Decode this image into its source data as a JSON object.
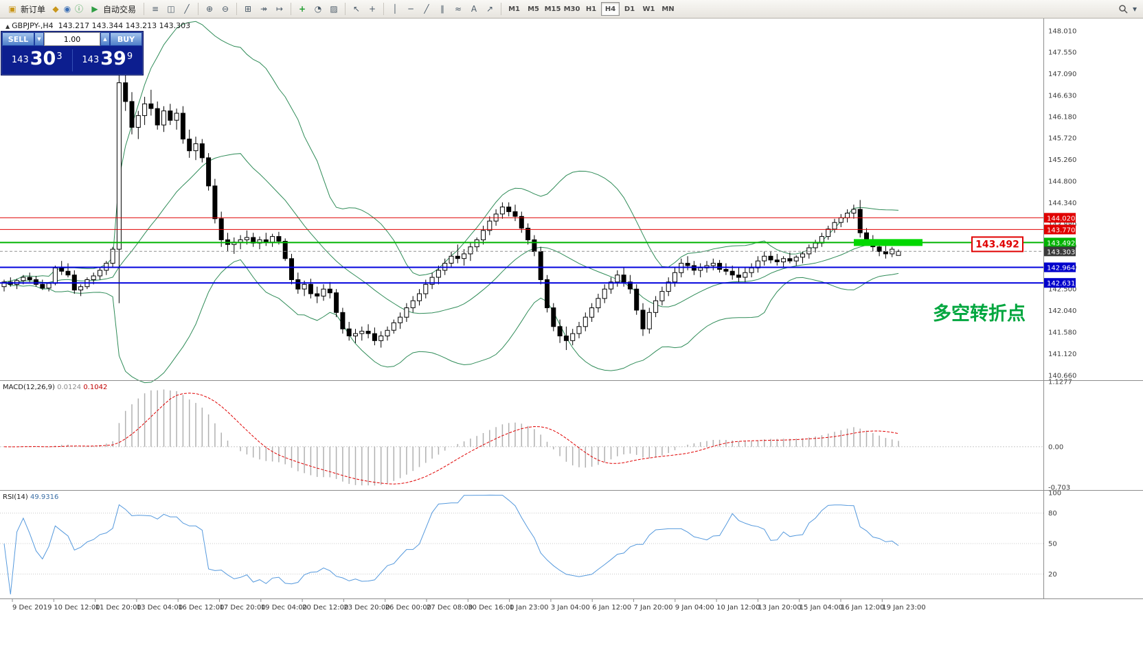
{
  "toolbar": {
    "new_order_label": "新订单",
    "auto_trading_label": "自动交易",
    "glyphs": {
      "new_order": "▣",
      "profile": "◆",
      "market": "◉",
      "info": "ⓘ",
      "play": "▶",
      "dropdown": "▾"
    },
    "tools": [
      {
        "name": "bar-chart",
        "glyph": "≡"
      },
      {
        "name": "candlestick-chart",
        "glyph": "◫"
      },
      {
        "name": "line-chart",
        "glyph": "╱"
      },
      {
        "name": "sep"
      },
      {
        "name": "zoom-in",
        "glyph": "⊕"
      },
      {
        "name": "zoom-out",
        "glyph": "⊖"
      },
      {
        "name": "sep"
      },
      {
        "name": "tile-windows",
        "glyph": "⊞"
      },
      {
        "name": "auto-scroll",
        "glyph": "↠"
      },
      {
        "name": "chart-shift",
        "glyph": "↦"
      },
      {
        "name": "sep"
      },
      {
        "name": "indicators-add",
        "glyph": "+",
        "color": "#1f9d2f"
      },
      {
        "name": "periods",
        "glyph": "◔"
      },
      {
        "name": "templates",
        "glyph": "▨"
      },
      {
        "name": "sep"
      },
      {
        "name": "cursor",
        "glyph": "↖"
      },
      {
        "name": "crosshair",
        "glyph": "+"
      },
      {
        "name": "sep"
      },
      {
        "name": "vertical-line",
        "glyph": "│"
      },
      {
        "name": "horizontal-line",
        "glyph": "─"
      },
      {
        "name": "trendline",
        "glyph": "╱"
      },
      {
        "name": "equidistant-channel",
        "glyph": "∥"
      },
      {
        "name": "fibonacci",
        "glyph": "≈"
      },
      {
        "name": "text-tool",
        "glyph": "A"
      },
      {
        "name": "arrows-tool",
        "glyph": "↗"
      }
    ],
    "timeframes": [
      "M1",
      "M5",
      "M15",
      "M30",
      "H1",
      "H4",
      "D1",
      "W1",
      "MN"
    ],
    "active_timeframe": "H4"
  },
  "symbol_header": {
    "arrow": "▲",
    "symbol": "GBPJPY-,H4",
    "ohlc_text": "143.217 143.344 143.213 143.303"
  },
  "trade_panel": {
    "sell_label": "SELL",
    "buy_label": "BUY",
    "lot_value": "1.00",
    "down_glyph": "▼",
    "up_glyph": "▲",
    "sell_price_main": "143",
    "sell_price_big": "30",
    "sell_price_sup": "3",
    "buy_price_main": "143",
    "buy_price_big": "39",
    "buy_price_sup": "9"
  },
  "chart_data": {
    "type": "candlestick",
    "symbol": "GBPJPY-",
    "timeframe": "H4",
    "ylim": [
      140.57,
      148.27
    ],
    "y_ticks": [
      148.01,
      147.55,
      147.09,
      146.63,
      146.18,
      145.72,
      145.26,
      144.8,
      144.34,
      143.88,
      143.42,
      142.96,
      142.5,
      142.04,
      141.58,
      141.12,
      140.66
    ],
    "levels": [
      {
        "value": 144.02,
        "color": "#e00000",
        "style": "solid",
        "width": 1
      },
      {
        "value": 143.77,
        "color": "#e00000",
        "style": "solid",
        "width": 1
      },
      {
        "value": 143.492,
        "color": "#00b400",
        "style": "solid",
        "width": 2
      },
      {
        "value": 143.303,
        "color": "#909090",
        "style": "dash",
        "width": 1
      },
      {
        "value": 142.964,
        "color": "#0000dd",
        "style": "solid",
        "width": 2
      },
      {
        "value": 142.631,
        "color": "#0000dd",
        "style": "solid",
        "width": 2
      }
    ],
    "price_tags": [
      {
        "value": 144.02,
        "bg": "#e00000"
      },
      {
        "value": 143.77,
        "bg": "#e00000"
      },
      {
        "value": 143.492,
        "bg": "#00b400"
      },
      {
        "value": 143.303,
        "bg": "#3a3a3a"
      },
      {
        "value": 142.964,
        "bg": "#0000cc"
      },
      {
        "value": 142.631,
        "bg": "#0000cc"
      }
    ],
    "bollinger": {
      "period": 20,
      "deviation": 2,
      "color": "#2e8b57"
    },
    "macd": {
      "fast": 12,
      "slow": 26,
      "signal": 9,
      "label": "MACD(12,26,9)",
      "main_value": "0.0124",
      "signal_value": "0.1042",
      "ylim": [
        -0.703,
        1.1277
      ],
      "axis_labels": [
        1.1277,
        0.0,
        -0.703
      ]
    },
    "rsi": {
      "period": 14,
      "label": "RSI(14)",
      "value": "49.9316",
      "ylim": [
        0,
        100
      ],
      "level_lines": [
        80,
        50,
        20
      ],
      "axis_labels": [
        100,
        80,
        50,
        20
      ]
    },
    "annotations": {
      "green_box": {
        "price": 143.492
      },
      "price_label": "143.492",
      "cn_text": "多空转折点"
    },
    "time_labels": [
      "9 Dec 2019",
      "10 Dec 12:00",
      "11 Dec 20:00",
      "13 Dec 04:00",
      "16 Dec 12:00",
      "17 Dec 20:00",
      "19 Dec 04:00",
      "20 Dec 12:00",
      "23 Dec 20:00",
      "26 Dec 00:00",
      "27 Dec 08:00",
      "30 Dec 16:00",
      "1 Jan 23:00",
      "3 Jan 04:00",
      "6 Jan 12:00",
      "7 Jan 20:00",
      "9 Jan 04:00",
      "10 Jan 12:00",
      "13 Jan 20:00",
      "15 Jan 04:00",
      "16 Jan 12:00",
      "19 Jan 23:00"
    ],
    "ohlc": [
      [
        142.55,
        142.7,
        142.45,
        142.65
      ],
      [
        142.65,
        142.75,
        142.55,
        142.6
      ],
      [
        142.6,
        142.72,
        142.5,
        142.68
      ],
      [
        142.68,
        142.8,
        142.6,
        142.75
      ],
      [
        142.75,
        142.85,
        142.65,
        142.7
      ],
      [
        142.7,
        142.78,
        142.55,
        142.6
      ],
      [
        142.6,
        142.7,
        142.48,
        142.52
      ],
      [
        142.52,
        142.65,
        142.45,
        142.62
      ],
      [
        142.62,
        143.0,
        142.58,
        142.95
      ],
      [
        142.95,
        143.1,
        142.8,
        142.88
      ],
      [
        142.88,
        143.05,
        142.75,
        142.8
      ],
      [
        142.8,
        142.9,
        142.4,
        142.48
      ],
      [
        142.48,
        142.6,
        142.35,
        142.55
      ],
      [
        142.55,
        142.75,
        142.5,
        142.7
      ],
      [
        142.7,
        142.85,
        142.6,
        142.78
      ],
      [
        142.78,
        142.95,
        142.7,
        142.9
      ],
      [
        142.9,
        143.1,
        142.8,
        143.05
      ],
      [
        143.05,
        143.4,
        142.95,
        143.35
      ],
      [
        143.35,
        147.9,
        142.2,
        146.9
      ],
      [
        146.9,
        147.25,
        146.3,
        146.5
      ],
      [
        146.5,
        146.7,
        145.8,
        145.95
      ],
      [
        145.95,
        146.3,
        145.7,
        146.2
      ],
      [
        146.2,
        146.6,
        146.0,
        146.45
      ],
      [
        146.45,
        146.75,
        146.2,
        146.35
      ],
      [
        146.35,
        146.5,
        145.9,
        146.0
      ],
      [
        146.0,
        146.4,
        145.85,
        146.3
      ],
      [
        146.3,
        146.45,
        146.0,
        146.1
      ],
      [
        146.1,
        146.35,
        145.9,
        146.25
      ],
      [
        146.25,
        146.4,
        145.6,
        145.7
      ],
      [
        145.7,
        145.9,
        145.3,
        145.45
      ],
      [
        145.45,
        145.75,
        145.25,
        145.6
      ],
      [
        145.6,
        145.7,
        145.2,
        145.3
      ],
      [
        145.3,
        145.4,
        144.6,
        144.7
      ],
      [
        144.7,
        144.85,
        143.9,
        144.0
      ],
      [
        144.0,
        144.15,
        143.4,
        143.55
      ],
      [
        143.55,
        143.7,
        143.3,
        143.45
      ],
      [
        143.45,
        143.6,
        143.25,
        143.5
      ],
      [
        143.5,
        143.65,
        143.35,
        143.55
      ],
      [
        143.55,
        143.75,
        143.45,
        143.6
      ],
      [
        143.6,
        143.7,
        143.4,
        143.48
      ],
      [
        143.48,
        143.62,
        143.35,
        143.55
      ],
      [
        143.55,
        143.7,
        143.42,
        143.5
      ],
      [
        143.5,
        143.68,
        143.4,
        143.62
      ],
      [
        143.62,
        143.72,
        143.45,
        143.52
      ],
      [
        143.52,
        143.58,
        143.1,
        143.15
      ],
      [
        143.15,
        143.25,
        142.6,
        142.7
      ],
      [
        142.7,
        142.85,
        142.4,
        142.5
      ],
      [
        142.5,
        142.68,
        142.35,
        142.6
      ],
      [
        142.6,
        142.72,
        142.3,
        142.4
      ],
      [
        142.4,
        142.55,
        142.2,
        142.35
      ],
      [
        142.35,
        142.6,
        142.25,
        142.5
      ],
      [
        142.5,
        142.65,
        142.3,
        142.42
      ],
      [
        142.42,
        142.5,
        141.9,
        142.0
      ],
      [
        142.0,
        142.1,
        141.55,
        141.65
      ],
      [
        141.65,
        141.8,
        141.4,
        141.5
      ],
      [
        141.5,
        141.65,
        141.35,
        141.55
      ],
      [
        141.55,
        141.7,
        141.4,
        141.6
      ],
      [
        141.6,
        141.75,
        141.45,
        141.55
      ],
      [
        141.55,
        141.68,
        141.3,
        141.4
      ],
      [
        141.4,
        141.6,
        141.25,
        141.5
      ],
      [
        141.5,
        141.7,
        141.4,
        141.62
      ],
      [
        141.62,
        141.85,
        141.55,
        141.78
      ],
      [
        141.78,
        142.0,
        141.65,
        141.9
      ],
      [
        141.9,
        142.2,
        141.8,
        142.1
      ],
      [
        142.1,
        142.35,
        142.0,
        142.25
      ],
      [
        142.25,
        142.5,
        142.15,
        142.4
      ],
      [
        142.4,
        142.7,
        142.3,
        142.6
      ],
      [
        142.6,
        142.85,
        142.5,
        142.75
      ],
      [
        142.75,
        143.0,
        142.6,
        142.9
      ],
      [
        142.9,
        143.15,
        142.8,
        143.05
      ],
      [
        143.05,
        143.3,
        142.95,
        143.2
      ],
      [
        143.2,
        143.45,
        143.05,
        143.15
      ],
      [
        143.15,
        143.35,
        143.0,
        143.25
      ],
      [
        143.25,
        143.5,
        143.1,
        143.4
      ],
      [
        143.4,
        143.6,
        143.3,
        143.55
      ],
      [
        143.55,
        143.85,
        143.45,
        143.75
      ],
      [
        143.75,
        144.05,
        143.65,
        143.95
      ],
      [
        143.95,
        144.2,
        143.85,
        144.1
      ],
      [
        144.1,
        144.35,
        144.0,
        144.25
      ],
      [
        144.25,
        144.35,
        144.05,
        144.15
      ],
      [
        144.15,
        144.3,
        143.95,
        144.05
      ],
      [
        144.05,
        144.15,
        143.7,
        143.8
      ],
      [
        143.8,
        143.9,
        143.45,
        143.55
      ],
      [
        143.55,
        143.65,
        143.2,
        143.3
      ],
      [
        143.3,
        143.4,
        142.6,
        142.7
      ],
      [
        142.7,
        142.8,
        142.0,
        142.1
      ],
      [
        142.1,
        142.2,
        141.6,
        141.7
      ],
      [
        141.7,
        141.85,
        141.35,
        141.5
      ],
      [
        141.5,
        141.7,
        141.2,
        141.4
      ],
      [
        141.4,
        141.65,
        141.3,
        141.55
      ],
      [
        141.55,
        141.8,
        141.45,
        141.7
      ],
      [
        141.7,
        142.0,
        141.6,
        141.9
      ],
      [
        141.9,
        142.2,
        141.8,
        142.1
      ],
      [
        142.1,
        142.4,
        142.0,
        142.3
      ],
      [
        142.3,
        142.6,
        142.2,
        142.5
      ],
      [
        142.5,
        142.75,
        142.4,
        142.65
      ],
      [
        142.65,
        142.9,
        142.55,
        142.8
      ],
      [
        142.8,
        142.95,
        142.55,
        142.65
      ],
      [
        142.65,
        142.8,
        142.4,
        142.5
      ],
      [
        142.5,
        142.6,
        141.95,
        142.05
      ],
      [
        142.05,
        142.2,
        141.5,
        141.65
      ],
      [
        141.65,
        142.1,
        141.55,
        142.0
      ],
      [
        142.0,
        142.35,
        141.9,
        142.25
      ],
      [
        142.25,
        142.55,
        142.15,
        142.45
      ],
      [
        142.45,
        142.75,
        142.35,
        142.65
      ],
      [
        142.65,
        142.95,
        142.55,
        142.85
      ],
      [
        142.85,
        143.15,
        142.75,
        143.05
      ],
      [
        143.05,
        143.2,
        142.9,
        143.0
      ],
      [
        143.0,
        143.1,
        142.8,
        142.9
      ],
      [
        142.9,
        143.05,
        142.75,
        142.95
      ],
      [
        142.95,
        143.1,
        142.85,
        143.0
      ],
      [
        143.0,
        143.15,
        142.9,
        143.05
      ],
      [
        143.05,
        143.12,
        142.85,
        142.92
      ],
      [
        142.92,
        143.05,
        142.8,
        142.88
      ],
      [
        142.88,
        143.0,
        142.7,
        142.8
      ],
      [
        142.8,
        142.95,
        142.65,
        142.75
      ],
      [
        142.75,
        142.95,
        142.65,
        142.85
      ],
      [
        142.85,
        143.05,
        142.75,
        142.95
      ],
      [
        142.95,
        143.2,
        142.85,
        143.1
      ],
      [
        143.1,
        143.3,
        143.0,
        143.2
      ],
      [
        143.2,
        143.3,
        143.05,
        143.12
      ],
      [
        143.12,
        143.25,
        143.0,
        143.08
      ],
      [
        143.08,
        143.2,
        142.95,
        143.15
      ],
      [
        143.15,
        143.28,
        143.05,
        143.1
      ],
      [
        143.1,
        143.22,
        143.0,
        143.18
      ],
      [
        143.18,
        143.3,
        143.05,
        143.25
      ],
      [
        143.25,
        143.45,
        143.15,
        143.38
      ],
      [
        143.38,
        143.55,
        143.28,
        143.48
      ],
      [
        143.48,
        143.7,
        143.4,
        143.62
      ],
      [
        143.62,
        143.85,
        143.55,
        143.78
      ],
      [
        143.78,
        144.0,
        143.7,
        143.92
      ],
      [
        143.92,
        144.1,
        143.82,
        144.02
      ],
      [
        144.02,
        144.2,
        143.92,
        144.12
      ],
      [
        144.12,
        144.3,
        144.0,
        144.2
      ],
      [
        144.2,
        144.4,
        143.6,
        143.7
      ],
      [
        143.7,
        143.8,
        143.45,
        143.55
      ],
      [
        143.55,
        143.65,
        143.3,
        143.4
      ],
      [
        143.4,
        143.5,
        143.2,
        143.3
      ],
      [
        143.3,
        143.45,
        143.15,
        143.25
      ],
      [
        143.25,
        143.4,
        143.18,
        143.35
      ],
      [
        143.217,
        143.344,
        143.213,
        143.303
      ]
    ]
  }
}
